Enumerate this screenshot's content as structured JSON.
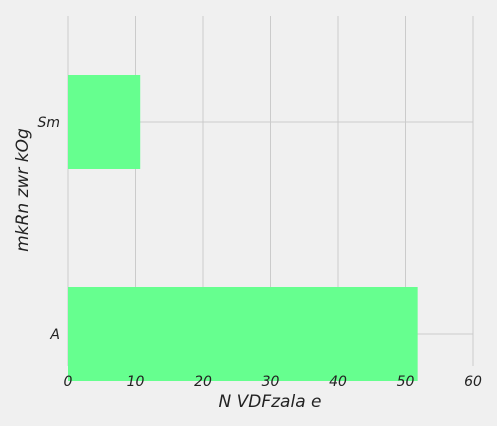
{
  "chart_data": {
    "type": "bar",
    "orientation": "horizontal",
    "categories": [
      "Sm",
      "A"
    ],
    "values": [
      10.7,
      51.8
    ],
    "xlabel": "N VDFzala e",
    "ylabel": "mkRn zwr kOg",
    "xlim": [
      0,
      60
    ],
    "xticks": [
      "0",
      "10",
      "20",
      "30",
      "40",
      "50",
      "60"
    ],
    "grid": true,
    "bar_color": "#66ff8f",
    "background_color": "#f0f0f0",
    "grid_color": "#cbcbcb"
  }
}
